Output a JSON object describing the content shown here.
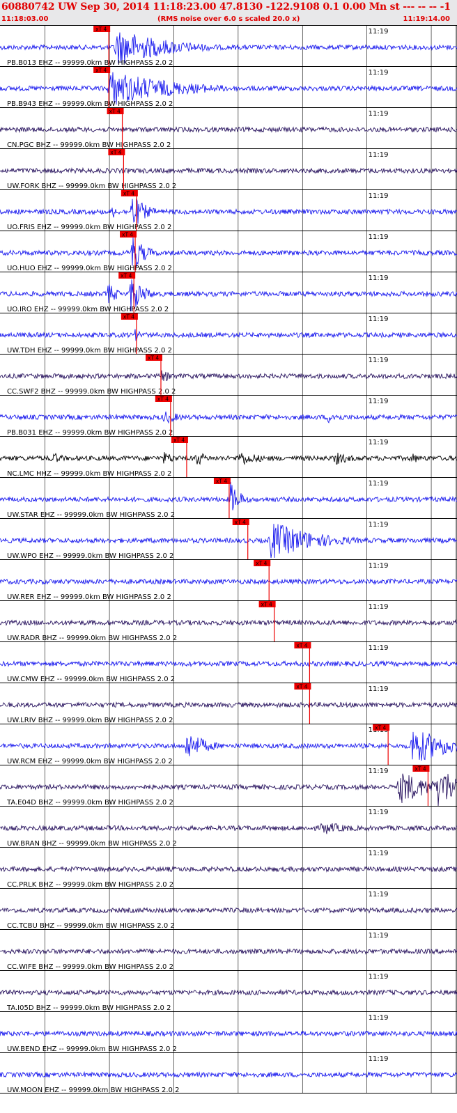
{
  "header": {
    "title": "60880742 UW Sep 30, 2014 11:18:23.00   47.8130 -122.9108  0.1 0.00 Mn st --- -- --  -1",
    "time_start": "11:18:03.00",
    "rms_note": "(RMS noise over 6.0 s scaled 20.0 x)",
    "time_end": "11:19:14.00"
  },
  "colors": {
    "trace_blue": "#1a1aee",
    "trace_navy": "#2a1560",
    "trace_black": "#000000",
    "pick_red": "#ee0000",
    "header_bg": "#e8e8ea",
    "header_text": "#e00000"
  },
  "chart_data": {
    "type": "line",
    "title": "60880742 UW Sep 30, 2014 11:18:23.00   47.8130 -122.9108  0.1 0.00 Mn st --- -- --  -1",
    "x_range": [
      "11:18:03.00",
      "11:19:14.00"
    ],
    "x_minute_label": "11:19",
    "grid": true,
    "pick_label": "xT 4",
    "channels": [
      {
        "label": "PB.B013 EHZ -- 99999.0km BW  HIGHPASS  2.0  2",
        "color": "blue",
        "pick_s": 16.9,
        "events": [
          {
            "t": 18,
            "amp": 1.0,
            "dur": 8
          }
        ]
      },
      {
        "label": "PB.B943 EHZ -- 99999.0km BW  HIGHPASS  2.0  2",
        "color": "blue",
        "pick_s": 16.9,
        "events": [
          {
            "t": 17,
            "amp": 0.95,
            "dur": 10
          }
        ]
      },
      {
        "label": "CN.PGC BHZ -- 99999.0km BW  HIGHPASS  2.0  2",
        "color": "navy",
        "pick_s": 19.0,
        "events": []
      },
      {
        "label": "UW.FORK BHZ -- 99999.0km BW  HIGHPASS  2.0  2",
        "color": "navy",
        "pick_s": 19.2,
        "events": []
      },
      {
        "label": "UO.FRIS EHZ -- 99999.0km BW  HIGHPASS  2.0  2",
        "color": "blue",
        "pick_s": 21.2,
        "events": [
          {
            "t": 20.5,
            "amp": 1.0,
            "dur": 2
          },
          {
            "t": 17.5,
            "amp": 0.35,
            "dur": 1
          }
        ]
      },
      {
        "label": "UO.HUO EHZ -- 99999.0km BW  HIGHPASS  2.0  2",
        "color": "blue",
        "pick_s": 21.0,
        "events": [
          {
            "t": 20.5,
            "amp": 1.0,
            "dur": 2
          }
        ]
      },
      {
        "label": "UO.IRO EHZ -- 99999.0km BW  HIGHPASS  2.0  2",
        "color": "blue",
        "pick_s": 20.8,
        "events": [
          {
            "t": 20.3,
            "amp": 1.0,
            "dur": 2
          },
          {
            "t": 16.8,
            "amp": 0.6,
            "dur": 1.5
          }
        ]
      },
      {
        "label": "UW.TDH EHZ -- 99999.0km BW  HIGHPASS  2.0  2",
        "color": "blue",
        "pick_s": 21.2,
        "events": [
          {
            "t": 21,
            "amp": 0.3,
            "dur": 2
          }
        ]
      },
      {
        "label": "CC.SWF2 BHZ -- 99999.0km BW  HIGHPASS  2.0  2",
        "color": "navy",
        "pick_s": 25.0,
        "events": [
          {
            "t": 25,
            "amp": 0.3,
            "dur": 3
          }
        ]
      },
      {
        "label": "PB.B031 EHZ -- 99999.0km BW  HIGHPASS  2.0  2",
        "color": "blue",
        "pick_s": 26.5,
        "events": [
          {
            "t": 25.5,
            "amp": 0.35,
            "dur": 3
          },
          {
            "t": 51,
            "amp": 0.3,
            "dur": 3
          }
        ]
      },
      {
        "label": "NC.LMC HHZ -- 99999.0km BW  HIGHPASS  2.0  2",
        "color": "black",
        "pick_s": 29.0,
        "events": [
          {
            "t": 8,
            "amp": 0.35,
            "dur": 2
          },
          {
            "t": 25.5,
            "amp": 0.35,
            "dur": 2
          },
          {
            "t": 30.5,
            "amp": 0.45,
            "dur": 1.5
          },
          {
            "t": 37,
            "amp": 0.4,
            "dur": 4
          },
          {
            "t": 52,
            "amp": 0.35,
            "dur": 3
          },
          {
            "t": 64,
            "amp": 0.3,
            "dur": 1.5
          }
        ]
      },
      {
        "label": "UW.STAR EHZ -- 99999.0km BW  HIGHPASS  2.0  2",
        "color": "blue",
        "pick_s": 35.6,
        "events": [
          {
            "t": 35.8,
            "amp": 0.95,
            "dur": 1.5
          }
        ]
      },
      {
        "label": "UW.WPO EHZ -- 99999.0km BW  HIGHPASS  2.0  2",
        "color": "blue",
        "pick_s": 38.5,
        "events": [
          {
            "t": 42,
            "amp": 1.0,
            "dur": 7
          }
        ]
      },
      {
        "label": "UW.RER EHZ -- 99999.0km BW  HIGHPASS  2.0  2",
        "color": "blue",
        "pick_s": 41.8,
        "events": []
      },
      {
        "label": "UW.RADR BHZ -- 99999.0km BW  HIGHPASS  2.0  2",
        "color": "navy",
        "pick_s": 42.6,
        "events": []
      },
      {
        "label": "UW.CMW EHZ -- 99999.0km BW  HIGHPASS  2.0  2",
        "color": "blue",
        "pick_s": 48.1,
        "events": []
      },
      {
        "label": "UW.LRIV BHZ -- 99999.0km BW  HIGHPASS  2.0  2",
        "color": "navy",
        "pick_s": 48.1,
        "events": []
      },
      {
        "label": "UW.RCM EHZ -- 99999.0km BW  HIGHPASS  2.0  2",
        "color": "blue",
        "pick_s": 60.3,
        "events": [
          {
            "t": 29,
            "amp": 0.8,
            "dur": 3
          },
          {
            "t": 64,
            "amp": 1.0,
            "dur": 6
          }
        ]
      },
      {
        "label": "TA.E04D BHZ -- 99999.0km BW  HIGHPASS  2.0  2",
        "color": "navy",
        "pick_s": 66.5,
        "events": [
          {
            "t": 62,
            "amp": 0.9,
            "dur": 5
          },
          {
            "t": 68,
            "amp": 1.0,
            "dur": 6
          }
        ]
      },
      {
        "label": "UW.BRAN BHZ -- 99999.0km BW  HIGHPASS  2.0  2",
        "color": "navy",
        "pick_s": null,
        "events": [
          {
            "t": 50,
            "amp": 0.35,
            "dur": 5
          }
        ]
      },
      {
        "label": "CC.PRLK BHZ -- 99999.0km BW  HIGHPASS  2.0  2",
        "color": "navy",
        "pick_s": null,
        "events": []
      },
      {
        "label": "CC.TCBU BHZ -- 99999.0km BW  HIGHPASS  2.0  2",
        "color": "navy",
        "pick_s": null,
        "events": []
      },
      {
        "label": "CC.WIFE BHZ -- 99999.0km BW  HIGHPASS  2.0  2",
        "color": "navy",
        "pick_s": null,
        "events": []
      },
      {
        "label": "TA.I05D BHZ -- 99999.0km BW  HIGHPASS  2.0  2",
        "color": "navy",
        "pick_s": null,
        "events": []
      },
      {
        "label": "UW.BEND EHZ -- 99999.0km BW  HIGHPASS  2.0  2",
        "color": "blue",
        "pick_s": null,
        "events": []
      },
      {
        "label": "UW.MOON EHZ -- 99999.0km BW  HIGHPASS  2.0  2",
        "color": "blue",
        "pick_s": null,
        "events": []
      }
    ]
  }
}
